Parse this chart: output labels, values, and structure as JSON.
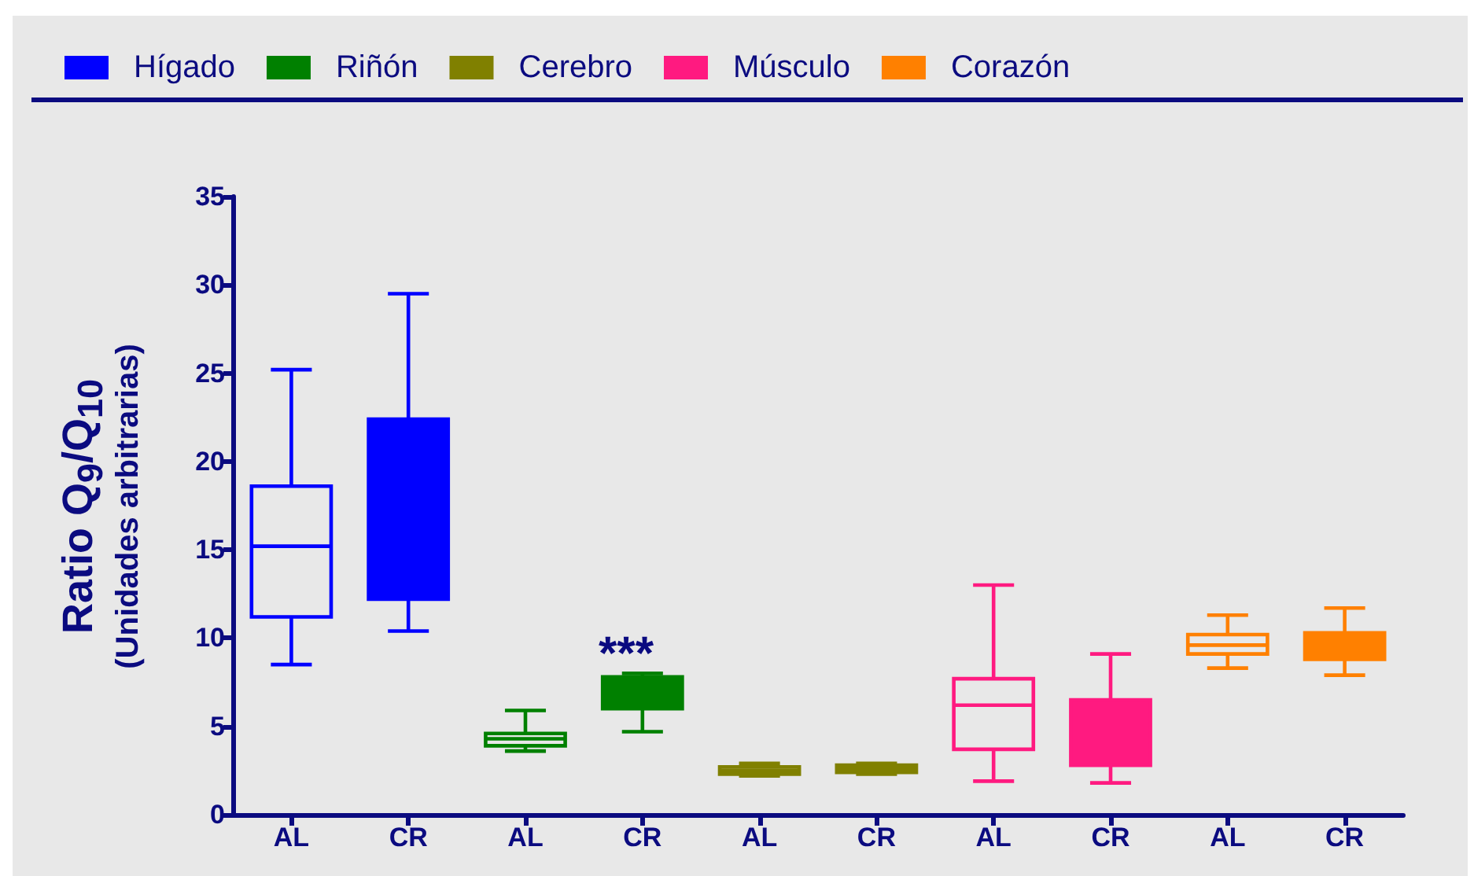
{
  "chart_data": {
    "type": "box",
    "ylabel": "Ratio Q$_{9}$/Q$_{10}$\n(Unidades arbitrarias)",
    "categories": [
      "AL",
      "CR",
      "AL",
      "CR",
      "AL",
      "CR",
      "AL",
      "CR",
      "AL",
      "CR"
    ],
    "series": [
      {
        "name": "Hígado",
        "color": "#0000ff",
        "boxes": [
          {
            "low": 8.5,
            "q1": 11.2,
            "median": 15.2,
            "q3": 18.6,
            "high": 25.2
          },
          {
            "low": 10.4,
            "q1": 12.2,
            "median": null,
            "q3": 22.4,
            "high": 29.5
          },
          null,
          null,
          null,
          null,
          null,
          null,
          null,
          null
        ]
      },
      {
        "name": "Riñón",
        "color": "#008000",
        "boxes": [
          null,
          null,
          {
            "low": 3.6,
            "q1": 3.9,
            "median": 4.3,
            "q3": 4.6,
            "high": 5.9
          },
          {
            "low": 4.7,
            "q1": 6.0,
            "median": null,
            "q3": 7.8,
            "high": 8.0
          },
          null,
          null,
          null,
          null,
          null,
          null
        ]
      },
      {
        "name": "Cerebro",
        "color": "#808000",
        "boxes": [
          null,
          null,
          null,
          null,
          {
            "low": 2.2,
            "q1": 2.3,
            "median": 2.5,
            "q3": 2.7,
            "high": 2.9
          },
          {
            "low": 2.3,
            "q1": 2.4,
            "median": null,
            "q3": 2.8,
            "high": 2.9
          },
          null,
          null,
          null,
          null
        ]
      },
      {
        "name": "Músculo",
        "color": "#ff1a80",
        "boxes": [
          null,
          null,
          null,
          null,
          null,
          null,
          {
            "low": 1.9,
            "q1": 3.7,
            "median": 6.2,
            "q3": 7.7,
            "high": 13.0
          },
          {
            "low": 1.8,
            "q1": 2.8,
            "median": null,
            "q3": 6.5,
            "high": 9.1
          },
          null,
          null
        ]
      },
      {
        "name": "Corazón",
        "color": "#ff8000",
        "boxes": [
          null,
          null,
          null,
          null,
          null,
          null,
          null,
          null,
          {
            "low": 8.3,
            "q1": 9.1,
            "median": 9.6,
            "q3": 10.2,
            "high": 11.3
          },
          {
            "low": 7.9,
            "q1": 8.8,
            "median": null,
            "q3": 10.3,
            "high": 11.7
          }
        ]
      }
    ],
    "ylim": [
      0,
      35
    ],
    "yticks": [
      0,
      5,
      10,
      15,
      20,
      25,
      30,
      35
    ],
    "grid": false,
    "legend": "top left",
    "annotations": [
      "***"
    ]
  }
}
